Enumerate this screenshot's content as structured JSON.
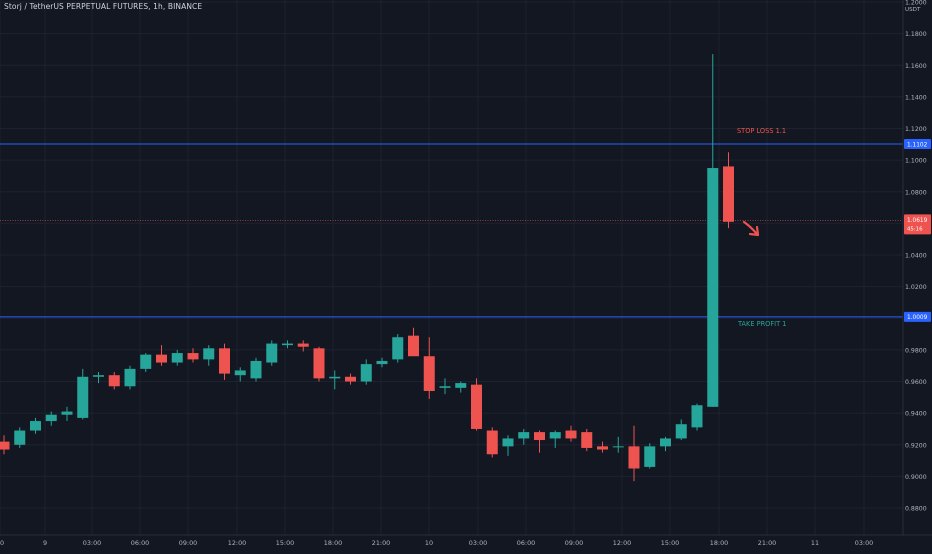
{
  "header": {
    "title": "Storj / TetherUS PERPETUAL FUTURES, 1h, BINANCE"
  },
  "axis": {
    "currency": "USDT"
  },
  "colors": {
    "background": "#131722",
    "grid": "#1e2230",
    "up": "#26a69a",
    "down": "#ef5350",
    "level_line": "#2962ff",
    "price_line": "#ef5350",
    "axis_text": "#b2b5be"
  },
  "chart_data": {
    "type": "candlestick",
    "ylim": [
      0.868,
      1.2
    ],
    "y_ticks": [
      "1.2000",
      "1.1800",
      "1.1600",
      "1.1400",
      "1.1200",
      "1.1000",
      "1.0800",
      "1.0600",
      "1.0400",
      "1.0200",
      "1.0000",
      "0.9800",
      "0.9600",
      "0.9400",
      "0.9200",
      "0.9000",
      "0.8800"
    ],
    "x_ticks": [
      "0",
      "9",
      "03:00",
      "06:00",
      "09:00",
      "12:00",
      "15:00",
      "18:00",
      "21:00",
      "10",
      "03:00",
      "06:00",
      "09:00",
      "12:00",
      "15:00",
      "18:00",
      "21:00",
      "11",
      "03:00"
    ],
    "candles": [
      {
        "o": 0.922,
        "h": 0.926,
        "l": 0.914,
        "c": 0.917
      },
      {
        "o": 0.92,
        "h": 0.931,
        "l": 0.918,
        "c": 0.929
      },
      {
        "o": 0.929,
        "h": 0.937,
        "l": 0.927,
        "c": 0.935
      },
      {
        "o": 0.935,
        "h": 0.941,
        "l": 0.932,
        "c": 0.939
      },
      {
        "o": 0.939,
        "h": 0.944,
        "l": 0.935,
        "c": 0.941
      },
      {
        "o": 0.937,
        "h": 0.968,
        "l": 0.936,
        "c": 0.963
      },
      {
        "o": 0.963,
        "h": 0.966,
        "l": 0.959,
        "c": 0.964
      },
      {
        "o": 0.964,
        "h": 0.966,
        "l": 0.955,
        "c": 0.957
      },
      {
        "o": 0.957,
        "h": 0.97,
        "l": 0.955,
        "c": 0.968
      },
      {
        "o": 0.968,
        "h": 0.978,
        "l": 0.966,
        "c": 0.977
      },
      {
        "o": 0.977,
        "h": 0.983,
        "l": 0.97,
        "c": 0.972
      },
      {
        "o": 0.972,
        "h": 0.98,
        "l": 0.97,
        "c": 0.978
      },
      {
        "o": 0.978,
        "h": 0.981,
        "l": 0.972,
        "c": 0.974
      },
      {
        "o": 0.974,
        "h": 0.983,
        "l": 0.97,
        "c": 0.981
      },
      {
        "o": 0.981,
        "h": 0.984,
        "l": 0.961,
        "c": 0.965
      },
      {
        "o": 0.964,
        "h": 0.969,
        "l": 0.96,
        "c": 0.967
      },
      {
        "o": 0.962,
        "h": 0.975,
        "l": 0.96,
        "c": 0.973
      },
      {
        "o": 0.972,
        "h": 0.986,
        "l": 0.97,
        "c": 0.984
      },
      {
        "o": 0.983,
        "h": 0.986,
        "l": 0.981,
        "c": 0.984
      },
      {
        "o": 0.984,
        "h": 0.986,
        "l": 0.979,
        "c": 0.982
      },
      {
        "o": 0.981,
        "h": 0.982,
        "l": 0.96,
        "c": 0.962
      },
      {
        "o": 0.962,
        "h": 0.967,
        "l": 0.955,
        "c": 0.963
      },
      {
        "o": 0.963,
        "h": 0.965,
        "l": 0.958,
        "c": 0.96
      },
      {
        "o": 0.96,
        "h": 0.974,
        "l": 0.958,
        "c": 0.971
      },
      {
        "o": 0.971,
        "h": 0.975,
        "l": 0.969,
        "c": 0.973
      },
      {
        "o": 0.974,
        "h": 0.99,
        "l": 0.972,
        "c": 0.988
      },
      {
        "o": 0.989,
        "h": 0.994,
        "l": 0.979,
        "c": 0.976
      },
      {
        "o": 0.976,
        "h": 0.988,
        "l": 0.949,
        "c": 0.954
      },
      {
        "o": 0.956,
        "h": 0.962,
        "l": 0.952,
        "c": 0.957
      },
      {
        "o": 0.956,
        "h": 0.96,
        "l": 0.953,
        "c": 0.959
      },
      {
        "o": 0.958,
        "h": 0.962,
        "l": 0.929,
        "c": 0.93
      },
      {
        "o": 0.929,
        "h": 0.931,
        "l": 0.912,
        "c": 0.914
      },
      {
        "o": 0.919,
        "h": 0.926,
        "l": 0.913,
        "c": 0.924
      },
      {
        "o": 0.924,
        "h": 0.93,
        "l": 0.92,
        "c": 0.928
      },
      {
        "o": 0.928,
        "h": 0.929,
        "l": 0.915,
        "c": 0.923
      },
      {
        "o": 0.924,
        "h": 0.929,
        "l": 0.918,
        "c": 0.928
      },
      {
        "o": 0.929,
        "h": 0.932,
        "l": 0.922,
        "c": 0.924
      },
      {
        "o": 0.928,
        "h": 0.93,
        "l": 0.916,
        "c": 0.918
      },
      {
        "o": 0.919,
        "h": 0.922,
        "l": 0.915,
        "c": 0.917
      },
      {
        "o": 0.919,
        "h": 0.925,
        "l": 0.915,
        "c": 0.919
      },
      {
        "o": 0.919,
        "h": 0.932,
        "l": 0.897,
        "c": 0.905
      },
      {
        "o": 0.906,
        "h": 0.921,
        "l": 0.905,
        "c": 0.919
      },
      {
        "o": 0.919,
        "h": 0.925,
        "l": 0.916,
        "c": 0.924
      },
      {
        "o": 0.924,
        "h": 0.936,
        "l": 0.923,
        "c": 0.933
      },
      {
        "o": 0.931,
        "h": 0.946,
        "l": 0.929,
        "c": 0.945
      },
      {
        "o": 0.944,
        "h": 1.167,
        "l": 0.944,
        "c": 1.095
      },
      {
        "o": 1.096,
        "h": 1.105,
        "l": 1.057,
        "c": 1.061
      }
    ],
    "levels": [
      {
        "label": "STOP LOSS 1.1",
        "value": 1.1102,
        "tag": "1.1102",
        "color": "#2962ff"
      },
      {
        "label": "TAKE PROFIT 1",
        "value": 1.0009,
        "tag": "1.0009",
        "color": "#2962ff"
      }
    ],
    "last_price": {
      "value": 1.0619,
      "tag": "1.0619",
      "countdown": "45:16"
    }
  }
}
